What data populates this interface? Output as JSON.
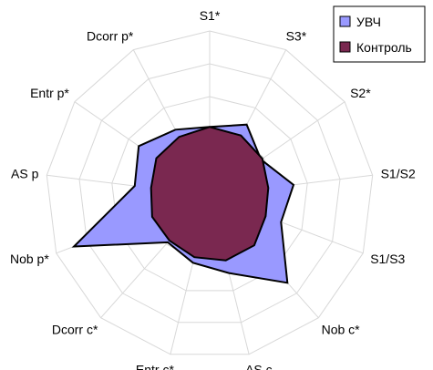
{
  "chart_data": {
    "type": "radar",
    "title": "",
    "categories": [
      "S1*",
      "S3*",
      "S2*",
      "S1/S2",
      "S1/S3",
      "Nob c*",
      "AS c",
      "Entr c*",
      "Dcorr c*",
      "Nob p*",
      "AS p",
      "Entr p*",
      "Dcorr p*"
    ],
    "range": [
      0,
      2
    ],
    "rings": 5,
    "grid": true,
    "legend_position": "top-right",
    "series": [
      {
        "name": "УВЧ",
        "color": "#9999ff",
        "values": [
          0.83,
          0.97,
          0.76,
          1.03,
          0.93,
          1.43,
          0.98,
          0.85,
          0.77,
          1.77,
          0.92,
          1.05,
          0.9
        ]
      },
      {
        "name": "Контроль",
        "color": "#7a2850",
        "values": [
          0.83,
          0.82,
          0.78,
          0.72,
          0.73,
          0.82,
          0.82,
          0.78,
          0.74,
          0.75,
          0.72,
          0.79,
          0.8
        ]
      }
    ]
  }
}
